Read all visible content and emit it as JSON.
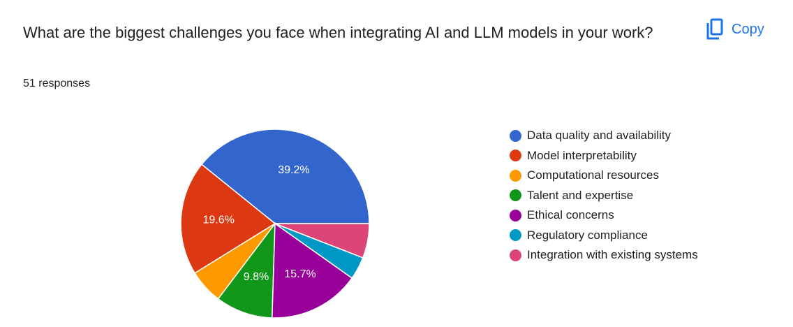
{
  "question": "What are the biggest challenges you face when integrating AI and LLM models in your work?",
  "responses_text": "51 responses",
  "copy_button": {
    "label": "Copy",
    "icon": "copy-icon",
    "color": "#1a73e8"
  },
  "chart_data": {
    "type": "pie",
    "title": "What are the biggest challenges you face when integrating AI and LLM models in your work?",
    "slices": [
      {
        "label": "Data quality and availability",
        "percent": 39.2,
        "value_label": "39.2%",
        "color": "#3366cc"
      },
      {
        "label": "Model interpretability",
        "percent": 19.6,
        "value_label": "19.6%",
        "color": "#dc3912"
      },
      {
        "label": "Computational resources",
        "percent": 5.9,
        "value_label": "",
        "color": "#ff9900"
      },
      {
        "label": "Talent and expertise",
        "percent": 9.8,
        "value_label": "9.8%",
        "color": "#109618"
      },
      {
        "label": "Ethical concerns",
        "percent": 15.7,
        "value_label": "15.7%",
        "color": "#990099"
      },
      {
        "label": "Regulatory compliance",
        "percent": 3.9,
        "value_label": "",
        "color": "#0099c6"
      },
      {
        "label": "Integration with existing systems",
        "percent": 5.9,
        "value_label": "",
        "color": "#dd4477"
      }
    ],
    "start": "3 o'clock, counter-clockwise",
    "legend_position": "right"
  }
}
